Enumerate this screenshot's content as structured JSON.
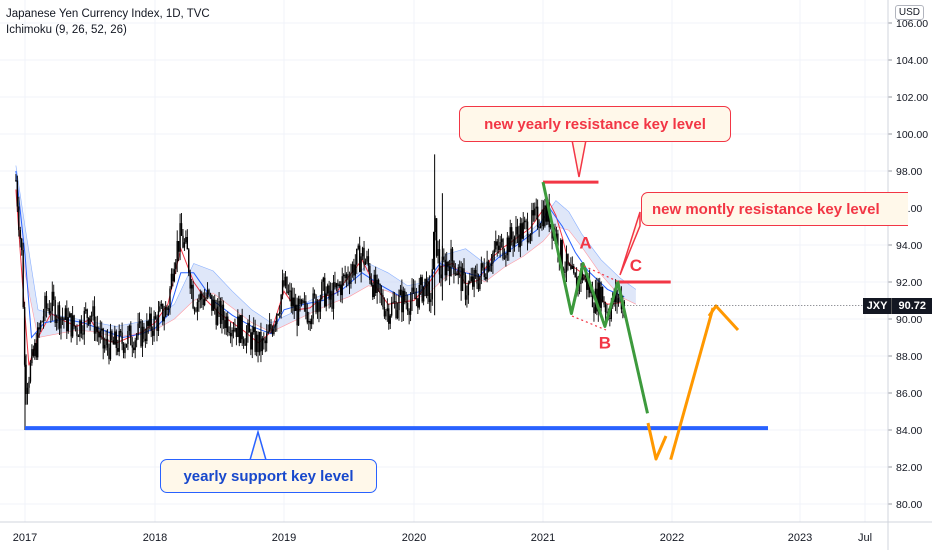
{
  "header": {
    "symbol_line": "Japanese Yen Currency Index, 1D, TVC",
    "indicator_line": "Ichimoku (9, 26, 52, 26)",
    "currency_badge": "USD"
  },
  "price_tag": {
    "symbol": "JXY",
    "value": "90.72"
  },
  "annotations": {
    "yearly_resistance": "new yearly resistance key level",
    "monthly_resistance": "new montly resistance key level",
    "yearly_support": "yearly support key level",
    "wave_a": "A",
    "wave_b": "B",
    "wave_c": "C"
  },
  "colors": {
    "candles": "#000000",
    "tenkan": "#f23645",
    "kijun": "#2962ff",
    "cloud": "#c9d7f5",
    "resistance": "#f23645",
    "support": "#1848cc",
    "projection_down": "#3d9a3d",
    "projection_up": "#ff9800",
    "axis_text": "#131722"
  },
  "chart_data": {
    "type": "line",
    "title": "Japanese Yen Currency Index, 1D, TVC",
    "x_axis": {
      "ticks": [
        "2017",
        "2018",
        "2019",
        "2020",
        "2021",
        "2022",
        "2023",
        "Jul"
      ],
      "tick_years": [
        2017,
        2018,
        2019,
        2020,
        2021,
        2022,
        2023,
        2023.5
      ],
      "range": [
        2016.93,
        2023.5
      ]
    },
    "y_axis": {
      "ticks": [
        "80.00",
        "82.00",
        "84.00",
        "86.00",
        "88.00",
        "90.00",
        "92.00",
        "94.00",
        "96.00",
        "98.00",
        "100.00",
        "102.00",
        "104.00",
        "106.00"
      ],
      "range": [
        79,
        107
      ],
      "position": "right",
      "unit": "USD"
    },
    "grid": true,
    "series": [
      {
        "type": "candlestick",
        "points": [
          [
            2016.93,
            97.5
          ],
          [
            2016.98,
            93.0
          ],
          [
            2017.0,
            86.5
          ],
          [
            2017.05,
            87.5
          ],
          [
            2017.1,
            89.0
          ],
          [
            2017.15,
            90.5
          ],
          [
            2017.2,
            90.8
          ],
          [
            2017.3,
            90.0
          ],
          [
            2017.4,
            89.5
          ],
          [
            2017.5,
            90.5
          ],
          [
            2017.6,
            88.5
          ],
          [
            2017.7,
            88.6
          ],
          [
            2017.8,
            89.0
          ],
          [
            2017.9,
            89.2
          ],
          [
            2018.0,
            89.8
          ],
          [
            2018.1,
            90.6
          ],
          [
            2018.15,
            93.5
          ],
          [
            2018.2,
            94.5
          ],
          [
            2018.25,
            93.5
          ],
          [
            2018.3,
            91.0
          ],
          [
            2018.4,
            91.2
          ],
          [
            2018.5,
            90.2
          ],
          [
            2018.6,
            89.8
          ],
          [
            2018.7,
            89.2
          ],
          [
            2018.8,
            88.6
          ],
          [
            2018.85,
            88.5
          ],
          [
            2018.9,
            89.5
          ],
          [
            2019.0,
            91.8
          ],
          [
            2019.05,
            91.0
          ],
          [
            2019.1,
            90.3
          ],
          [
            2019.2,
            90.5
          ],
          [
            2019.3,
            91.5
          ],
          [
            2019.35,
            91.0
          ],
          [
            2019.4,
            91.5
          ],
          [
            2019.5,
            92.5
          ],
          [
            2019.6,
            93.5
          ],
          [
            2019.65,
            92.8
          ],
          [
            2019.7,
            91.5
          ],
          [
            2019.8,
            90.5
          ],
          [
            2019.9,
            91.0
          ],
          [
            2020.0,
            91.0
          ],
          [
            2020.1,
            92.0
          ],
          [
            2020.12,
            90.2
          ],
          [
            2020.16,
            95.0
          ],
          [
            2020.2,
            92.5
          ],
          [
            2020.25,
            93.0
          ],
          [
            2020.3,
            93.2
          ],
          [
            2020.4,
            91.6
          ],
          [
            2020.5,
            92.2
          ],
          [
            2020.6,
            93.5
          ],
          [
            2020.7,
            94.0
          ],
          [
            2020.8,
            94.6
          ],
          [
            2020.9,
            95.0
          ],
          [
            2021.0,
            95.8
          ],
          [
            2021.05,
            95.5
          ],
          [
            2021.1,
            94.5
          ],
          [
            2021.15,
            93.2
          ],
          [
            2021.2,
            92.5
          ],
          [
            2021.25,
            91.8
          ],
          [
            2021.3,
            92.5
          ],
          [
            2021.35,
            91.8
          ],
          [
            2021.4,
            91.0
          ],
          [
            2021.45,
            91.5
          ],
          [
            2021.5,
            90.4
          ],
          [
            2021.55,
            91.0
          ],
          [
            2021.6,
            91.2
          ],
          [
            2021.63,
            90.72
          ]
        ]
      },
      {
        "name": "",
        "type": "tenkan",
        "points": [
          [
            2016.93,
            97.0
          ],
          [
            2016.98,
            92.0
          ],
          [
            2017.03,
            87.5
          ],
          [
            2017.1,
            89.0
          ],
          [
            2017.2,
            90.3
          ],
          [
            2017.3,
            89.9
          ],
          [
            2017.4,
            89.6
          ],
          [
            2017.5,
            90.0
          ],
          [
            2017.6,
            88.9
          ],
          [
            2017.7,
            88.7
          ],
          [
            2017.8,
            89.0
          ],
          [
            2017.9,
            89.3
          ],
          [
            2018.0,
            89.8
          ],
          [
            2018.1,
            90.8
          ],
          [
            2018.2,
            93.8
          ],
          [
            2018.3,
            92.0
          ],
          [
            2018.4,
            91.0
          ],
          [
            2018.5,
            90.3
          ],
          [
            2018.6,
            89.8
          ],
          [
            2018.7,
            89.3
          ],
          [
            2018.8,
            88.7
          ],
          [
            2018.9,
            89.3
          ],
          [
            2019.0,
            91.5
          ],
          [
            2019.1,
            90.5
          ],
          [
            2019.2,
            90.6
          ],
          [
            2019.3,
            91.2
          ],
          [
            2019.4,
            91.4
          ],
          [
            2019.5,
            92.3
          ],
          [
            2019.6,
            93.2
          ],
          [
            2019.7,
            91.8
          ],
          [
            2019.8,
            90.8
          ],
          [
            2019.9,
            90.9
          ],
          [
            2020.0,
            91.0
          ],
          [
            2020.1,
            91.8
          ],
          [
            2020.2,
            92.8
          ],
          [
            2020.3,
            93.0
          ],
          [
            2020.4,
            91.9
          ],
          [
            2020.5,
            92.1
          ],
          [
            2020.6,
            93.3
          ],
          [
            2020.7,
            93.9
          ],
          [
            2020.8,
            94.4
          ],
          [
            2020.9,
            94.9
          ],
          [
            2021.0,
            95.9
          ],
          [
            2021.05,
            96.3
          ],
          [
            2021.1,
            95.6
          ],
          [
            2021.15,
            94.4
          ],
          [
            2021.2,
            93.0
          ],
          [
            2021.3,
            92.5
          ],
          [
            2021.4,
            91.3
          ],
          [
            2021.5,
            90.8
          ],
          [
            2021.63,
            90.9
          ]
        ]
      },
      {
        "name": "",
        "type": "kijun",
        "points": [
          [
            2016.93,
            98.0
          ],
          [
            2017.0,
            93.5
          ],
          [
            2017.05,
            89.0
          ],
          [
            2017.15,
            89.8
          ],
          [
            2017.3,
            90.0
          ],
          [
            2017.45,
            89.8
          ],
          [
            2017.6,
            89.4
          ],
          [
            2017.75,
            89.0
          ],
          [
            2017.9,
            89.2
          ],
          [
            2018.0,
            89.5
          ],
          [
            2018.1,
            90.2
          ],
          [
            2018.2,
            92.5
          ],
          [
            2018.3,
            92.5
          ],
          [
            2018.45,
            91.0
          ],
          [
            2018.6,
            90.2
          ],
          [
            2018.75,
            89.6
          ],
          [
            2018.9,
            89.2
          ],
          [
            2019.0,
            90.5
          ],
          [
            2019.15,
            90.8
          ],
          [
            2019.3,
            91.0
          ],
          [
            2019.45,
            91.6
          ],
          [
            2019.6,
            92.5
          ],
          [
            2019.75,
            91.8
          ],
          [
            2019.9,
            91.2
          ],
          [
            2020.05,
            91.5
          ],
          [
            2020.2,
            93.0
          ],
          [
            2020.35,
            92.6
          ],
          [
            2020.5,
            92.3
          ],
          [
            2020.65,
            93.3
          ],
          [
            2020.8,
            94.0
          ],
          [
            2020.95,
            94.8
          ],
          [
            2021.05,
            96.0
          ],
          [
            2021.15,
            95.0
          ],
          [
            2021.25,
            93.6
          ],
          [
            2021.35,
            92.6
          ],
          [
            2021.5,
            91.6
          ],
          [
            2021.63,
            91.2
          ]
        ]
      },
      {
        "name": "",
        "type": "cloud_upper",
        "points": [
          [
            2016.93,
            98.3
          ],
          [
            2017.0,
            95.0
          ],
          [
            2017.1,
            90.5
          ],
          [
            2017.25,
            90.2
          ],
          [
            2017.4,
            90.0
          ],
          [
            2017.55,
            89.8
          ],
          [
            2017.7,
            89.6
          ],
          [
            2017.85,
            89.8
          ],
          [
            2018.0,
            90.0
          ],
          [
            2018.15,
            90.8
          ],
          [
            2018.3,
            93.0
          ],
          [
            2018.45,
            92.6
          ],
          [
            2018.6,
            91.5
          ],
          [
            2018.75,
            90.5
          ],
          [
            2018.9,
            89.8
          ],
          [
            2019.05,
            90.3
          ],
          [
            2019.2,
            91.0
          ],
          [
            2019.35,
            91.5
          ],
          [
            2019.5,
            92.0
          ],
          [
            2019.65,
            93.0
          ],
          [
            2019.8,
            92.5
          ],
          [
            2019.95,
            91.8
          ],
          [
            2020.1,
            92.0
          ],
          [
            2020.25,
            93.5
          ],
          [
            2020.4,
            93.8
          ],
          [
            2020.55,
            93.0
          ],
          [
            2020.7,
            93.6
          ],
          [
            2020.85,
            94.4
          ],
          [
            2021.0,
            95.4
          ],
          [
            2021.1,
            96.4
          ],
          [
            2021.2,
            95.8
          ],
          [
            2021.3,
            94.6
          ],
          [
            2021.45,
            93.2
          ],
          [
            2021.6,
            92.2
          ],
          [
            2021.72,
            91.6
          ]
        ]
      },
      {
        "name": "",
        "type": "cloud_lower",
        "points": [
          [
            2016.93,
            97.0
          ],
          [
            2017.0,
            92.5
          ],
          [
            2017.1,
            89.0
          ],
          [
            2017.25,
            89.2
          ],
          [
            2017.4,
            89.4
          ],
          [
            2017.55,
            89.3
          ],
          [
            2017.7,
            89.0
          ],
          [
            2017.85,
            89.2
          ],
          [
            2018.0,
            89.4
          ],
          [
            2018.15,
            90.0
          ],
          [
            2018.3,
            91.0
          ],
          [
            2018.45,
            91.4
          ],
          [
            2018.6,
            90.6
          ],
          [
            2018.75,
            89.8
          ],
          [
            2018.9,
            89.3
          ],
          [
            2019.05,
            89.8
          ],
          [
            2019.2,
            90.3
          ],
          [
            2019.35,
            90.8
          ],
          [
            2019.5,
            91.2
          ],
          [
            2019.65,
            91.8
          ],
          [
            2019.8,
            91.5
          ],
          [
            2019.95,
            91.0
          ],
          [
            2020.1,
            91.3
          ],
          [
            2020.25,
            92.3
          ],
          [
            2020.4,
            92.6
          ],
          [
            2020.55,
            92.0
          ],
          [
            2020.7,
            92.8
          ],
          [
            2020.85,
            93.4
          ],
          [
            2021.0,
            94.2
          ],
          [
            2021.1,
            95.0
          ],
          [
            2021.2,
            94.8
          ],
          [
            2021.3,
            93.9
          ],
          [
            2021.45,
            92.4
          ],
          [
            2021.6,
            91.2
          ],
          [
            2021.72,
            90.8
          ]
        ]
      }
    ],
    "levels": [
      {
        "name": "new yearly resistance key level",
        "value": 97.4,
        "x_from": 2021.0,
        "x_to": 2021.43,
        "color": "#f23645"
      },
      {
        "name": "new montly resistance key level",
        "value": 92.0,
        "x_from": 2021.58,
        "x_to": 2021.99,
        "color": "#f23645"
      },
      {
        "name": "yearly support key level",
        "value": 84.1,
        "x_from": 2017.0,
        "x_to": 2022.75,
        "color": "#2962ff"
      }
    ],
    "projections": [
      {
        "name": "wave down",
        "color": "#3d9a3d",
        "points": [
          [
            2021.0,
            97.4
          ],
          [
            2021.22,
            90.3
          ],
          [
            2021.31,
            93.0
          ],
          [
            2021.48,
            89.6
          ],
          [
            2021.58,
            92.0
          ],
          [
            2021.81,
            84.9
          ]
        ]
      },
      {
        "name": "wave up",
        "color": "#ff9800",
        "points": [
          [
            2021.99,
            82.4
          ],
          [
            2022.32,
            90.6
          ]
        ]
      }
    ],
    "wave_labels": [
      {
        "text": "A",
        "x": 2021.33,
        "y": 93.8
      },
      {
        "text": "B",
        "x": 2021.48,
        "y": 88.4
      },
      {
        "text": "C",
        "x": 2021.72,
        "y": 92.6
      }
    ],
    "last_price": 90.72
  }
}
